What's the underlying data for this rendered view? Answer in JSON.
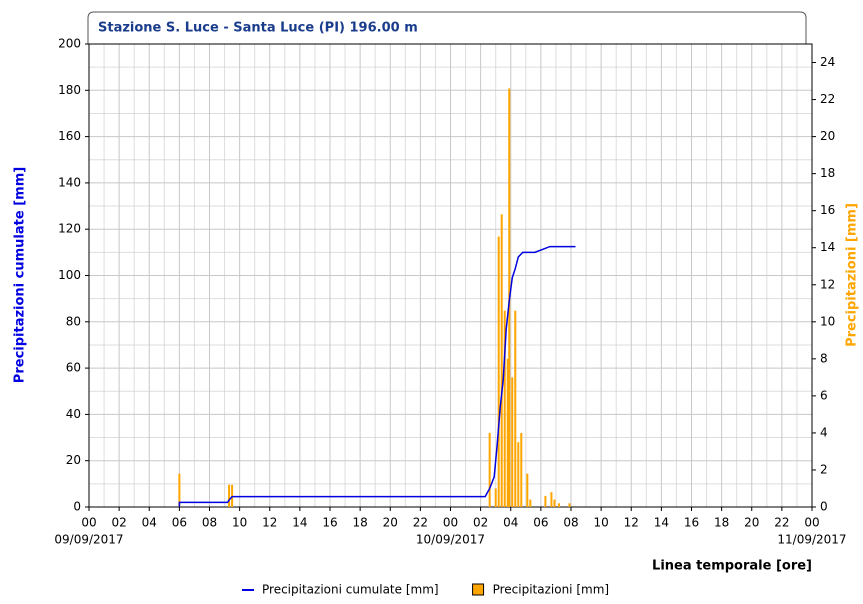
{
  "chart_data": {
    "type": "combo",
    "title": "Stazione S. Luce - Santa Luce (PI) 196.00 m",
    "xlabel": "Linea temporale [ore]",
    "ylabel": "Precipitazioni cumulate [mm]",
    "y2label": "Precipitazioni [mm]",
    "xlim": [
      0,
      48
    ],
    "xticks": [
      {
        "value": 0,
        "label": "00"
      },
      {
        "value": 2,
        "label": "02"
      },
      {
        "value": 4,
        "label": "04"
      },
      {
        "value": 6,
        "label": "06"
      },
      {
        "value": 8,
        "label": "08"
      },
      10,
      12,
      14,
      16,
      18,
      20,
      22,
      {
        "value": 24,
        "label": "00"
      },
      {
        "value": 26,
        "label": "02"
      },
      {
        "value": 28,
        "label": "04"
      },
      {
        "value": 30,
        "label": "06"
      },
      {
        "value": 32,
        "label": "08"
      },
      {
        "value": 34,
        "label": "10"
      },
      {
        "value": 36,
        "label": "12"
      },
      {
        "value": 38,
        "label": "14"
      },
      {
        "value": 40,
        "label": "16"
      },
      {
        "value": 42,
        "label": "18"
      },
      {
        "value": 44,
        "label": "20"
      },
      {
        "value": 46,
        "label": "22"
      },
      {
        "value": 48,
        "label": "00"
      }
    ],
    "date_labels": [
      {
        "value": 0,
        "label": "09/09/2017"
      },
      {
        "value": 24,
        "label": "10/09/2017"
      },
      {
        "value": 48,
        "label": "11/09/2017"
      }
    ],
    "ylim": [
      0,
      200
    ],
    "yticks": [
      0,
      20,
      40,
      60,
      80,
      100,
      120,
      140,
      160,
      180,
      200
    ],
    "y2lim": [
      0,
      25
    ],
    "y2ticks": [
      0,
      2,
      4,
      6,
      8,
      10,
      12,
      14,
      16,
      18,
      20,
      22,
      24
    ],
    "grid": true,
    "series": [
      {
        "name": "Precipitazioni cumulate [mm]",
        "type": "line",
        "color": "#0000e0",
        "axis": "y",
        "x": [
          6.0,
          6.0,
          9.2,
          9.3,
          9.5,
          26.3,
          26.6,
          26.9,
          27.1,
          27.3,
          27.5,
          27.7,
          27.9,
          28.1,
          28.3,
          28.5,
          28.8,
          29.6,
          30.0,
          30.6,
          32.3
        ],
        "values": [
          0,
          2,
          2,
          3,
          4.5,
          4.5,
          8,
          13,
          27,
          43,
          55,
          77,
          89,
          99,
          103,
          108,
          110,
          110,
          111,
          112.5,
          112.5
        ]
      },
      {
        "name": "Precipitazioni [mm]",
        "type": "bar",
        "color": "#ffa500",
        "axis": "y2",
        "x": [
          6.0,
          9.3,
          9.5,
          26.6,
          27.0,
          27.2,
          27.4,
          27.6,
          27.8,
          27.9,
          28.1,
          28.3,
          28.5,
          28.7,
          29.1,
          29.3,
          30.3,
          30.7,
          30.9,
          31.2,
          31.9
        ],
        "values": [
          1.8,
          1.2,
          1.2,
          4.0,
          1.0,
          14.6,
          15.8,
          10.6,
          8.0,
          22.6,
          7.0,
          10.6,
          3.5,
          4.0,
          1.8,
          0.4,
          0.6,
          0.8,
          0.4,
          0.2,
          0.2
        ]
      }
    ]
  }
}
